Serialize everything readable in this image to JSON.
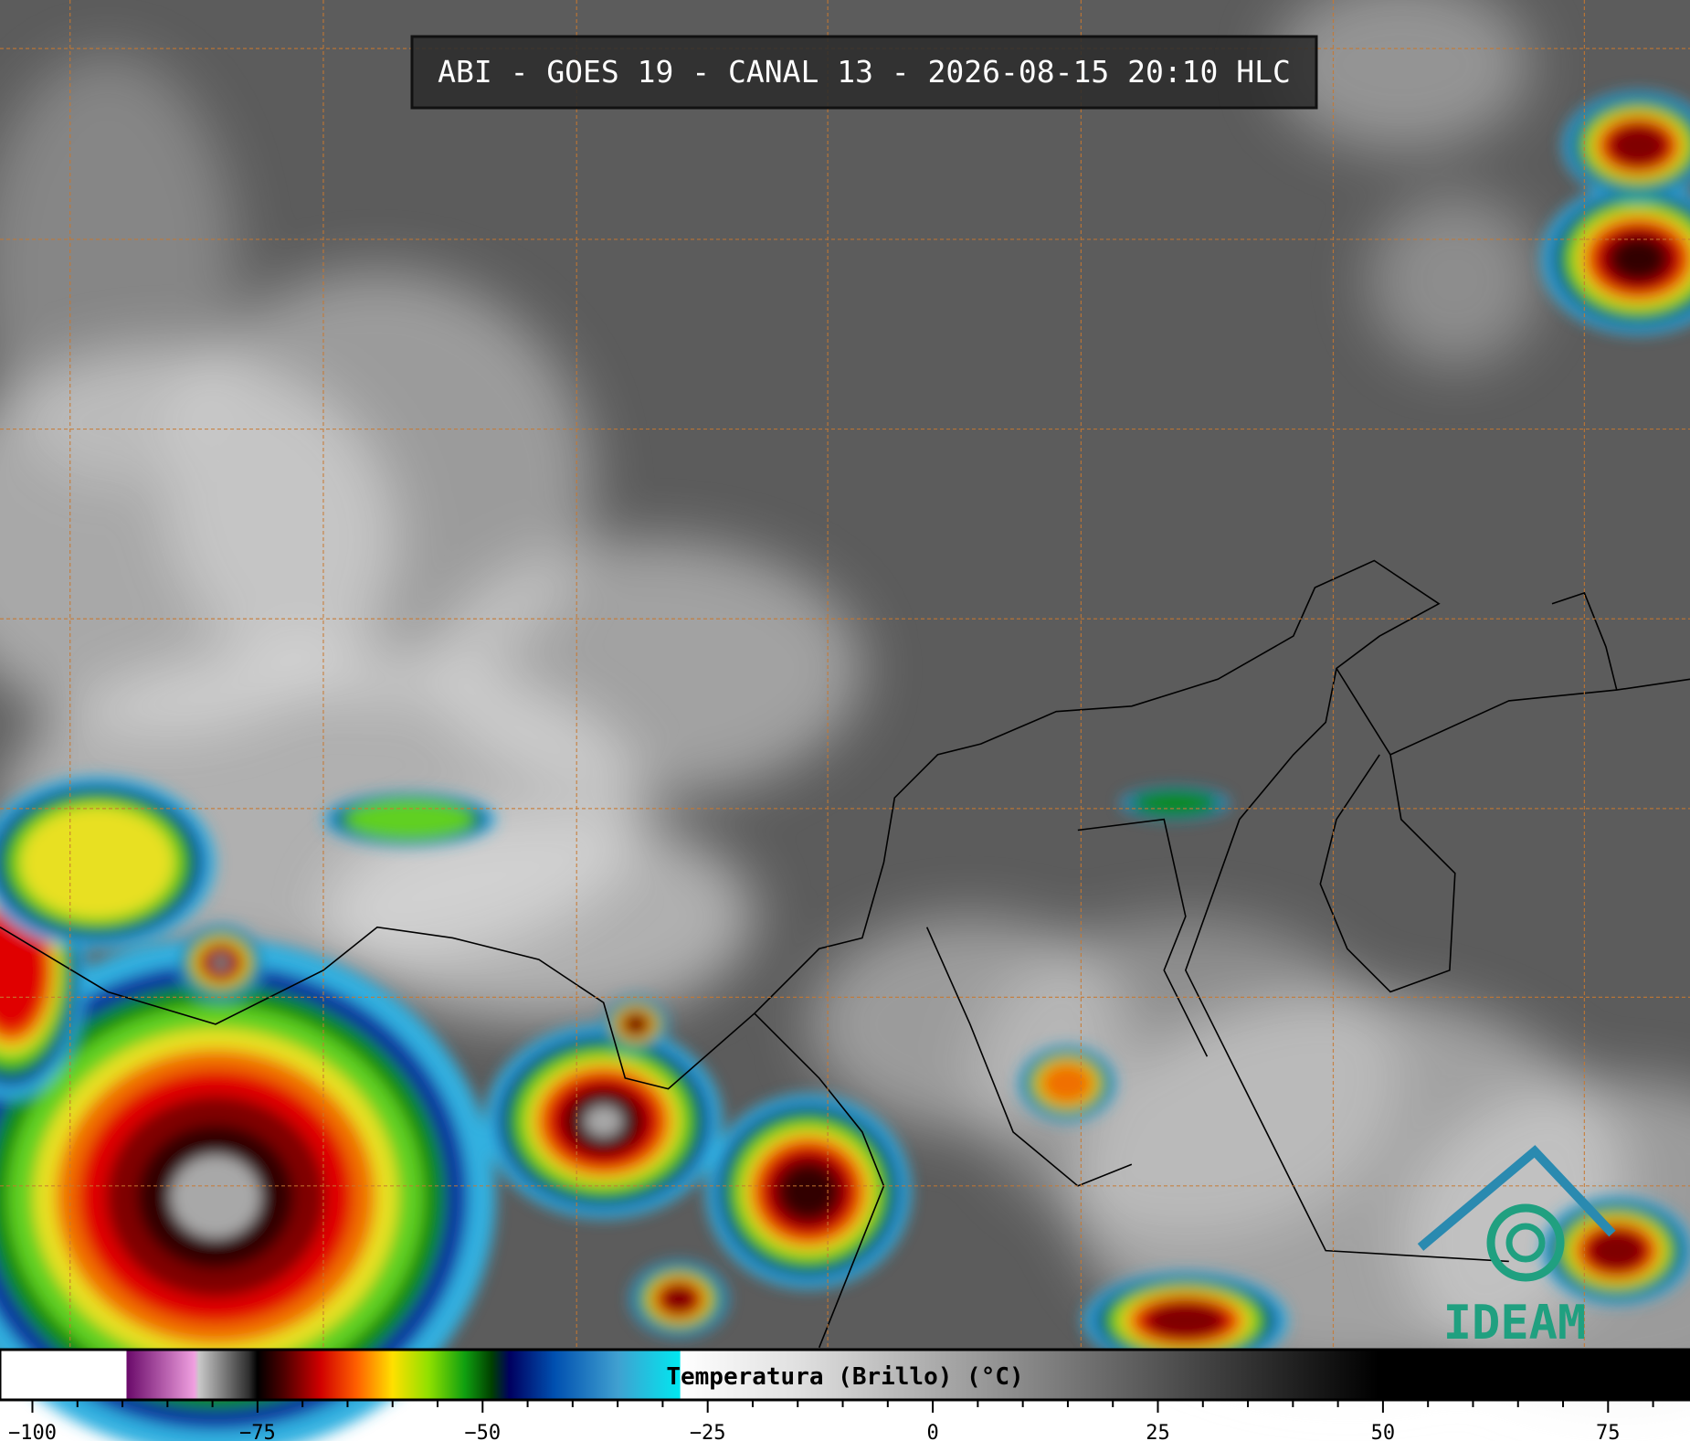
{
  "title": "ABI - GOES 19 - CANAL 13 - 2026-08-15 20:10 HLC",
  "logo": "IDEAM",
  "colorbar": {
    "label": "Temperatura (Brillo) (°C)",
    "xlim": [
      -103.6,
      84.1
    ],
    "ticks": [
      {
        "value": -100,
        "label": "−100"
      },
      {
        "value": -75,
        "label": "−75"
      },
      {
        "value": -50,
        "label": "−50"
      },
      {
        "value": -25,
        "label": "−25"
      },
      0,
      25,
      50,
      75
    ],
    "minor_ticks": [
      -95,
      -90,
      -85,
      -80,
      -70,
      -65,
      -60,
      -55,
      -45,
      -40,
      -35,
      -30,
      -20,
      -15,
      -10,
      -5,
      5,
      10,
      15,
      20,
      30,
      35,
      40,
      45,
      55,
      60,
      65,
      70,
      80
    ],
    "colorscale": [
      [
        -103.6,
        "#ffffff"
      ],
      [
        -89.6,
        "#ffffff"
      ],
      [
        -89.5,
        "#6a0a6a"
      ],
      [
        -82,
        "#f0a0e0"
      ],
      [
        -81.5,
        "#c8c8c8"
      ],
      [
        -76,
        "#303030"
      ],
      [
        -75,
        "#000000"
      ],
      [
        -72,
        "#500000"
      ],
      [
        -68,
        "#d00000"
      ],
      [
        -64,
        "#ff6000"
      ],
      [
        -60,
        "#ffe000"
      ],
      [
        -56,
        "#90e000"
      ],
      [
        -52,
        "#10a010"
      ],
      [
        -49,
        "#004000"
      ],
      [
        -47,
        "#000060"
      ],
      [
        -42,
        "#0050b0"
      ],
      [
        -35,
        "#40a0d0"
      ],
      [
        -28.1,
        "#00e8f0"
      ],
      [
        -28,
        "#ffffff"
      ],
      [
        -15,
        "#e0e0e0"
      ],
      [
        49.5,
        "#000000"
      ],
      [
        84.1,
        "#000000"
      ]
    ]
  }
}
